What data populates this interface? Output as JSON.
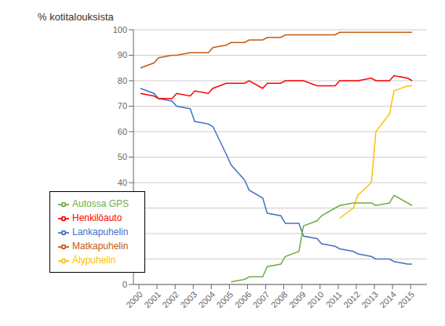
{
  "chart_data": {
    "type": "line",
    "y_label": "% kotitalouksista",
    "x": [
      2000.0833333333333,
      2000.8333333333333,
      2001.0833333333333,
      2001.8333333333333,
      2002.0833333333333,
      2002.8333333333333,
      2003.0833333333333,
      2003.8333333333333,
      2004.0833333333333,
      2004.8333333333333,
      2005.0833333333333,
      2005.8333333333333,
      2006.0833333333333,
      2006.8333333333333,
      2007.0833333333333,
      2007.8333333333333,
      2008.0833333333333,
      2008.8333333333333,
      2009.0833333333333,
      2009.8333333333333,
      2010.0833333333333,
      2010.8333333333333,
      2011.0833333333333,
      2011.8333333333333,
      2012.0833333333333,
      2012.8333333333333,
      2013.0833333333333,
      2013.8333333333333,
      2014.0833333333333,
      2014.8333333333333,
      2015.0833333333333
    ],
    "series": [
      {
        "name": "Lankapuhelin",
        "color": "#4472C4",
        "values": [
          77,
          75,
          73,
          72,
          70,
          69,
          64,
          63,
          62,
          51,
          47,
          41,
          37,
          34,
          28,
          27,
          24,
          24,
          19,
          18,
          16,
          15,
          14,
          13,
          12,
          11,
          10,
          10,
          9,
          8,
          8
        ]
      },
      {
        "name": "Matkapuhelin",
        "color": "#C55A11",
        "values": [
          85,
          87,
          89,
          90,
          90,
          91,
          91,
          91,
          93,
          94,
          95,
          95,
          96,
          96,
          97,
          97,
          98,
          98,
          98,
          98,
          98,
          98,
          99,
          99,
          99,
          99,
          99,
          99,
          99,
          99,
          99
        ]
      },
      {
        "name": "Älypuhelin",
        "color": "#FFC000",
        "values": [
          null,
          null,
          null,
          null,
          null,
          null,
          null,
          null,
          null,
          null,
          null,
          null,
          null,
          null,
          null,
          null,
          null,
          null,
          null,
          null,
          null,
          null,
          26,
          30,
          35,
          40,
          60,
          67,
          76,
          78,
          78
        ]
      },
      {
        "name": "Henkilöauto",
        "color": "#FF0000",
        "values": [
          75,
          74,
          73,
          73,
          75,
          74,
          76,
          75,
          77,
          79,
          79,
          79,
          80,
          77,
          79,
          79,
          80,
          80,
          80,
          78,
          78,
          78,
          80,
          80,
          80,
          81,
          80,
          80,
          82,
          81,
          80
        ]
      },
      {
        "name": "Autossa GPS",
        "color": "#70AD47",
        "values": [
          null,
          null,
          null,
          null,
          null,
          null,
          null,
          null,
          null,
          null,
          1,
          2,
          3,
          3,
          7,
          8,
          11,
          13,
          23,
          25,
          27,
          30,
          31,
          32,
          32,
          32,
          31,
          32,
          35,
          32,
          31
        ]
      }
    ],
    "xlim": [
      1999.7,
      2015.9
    ],
    "xticks": [
      2000,
      2001,
      2002,
      2003,
      2004,
      2005,
      2006,
      2007,
      2008,
      2009,
      2010,
      2011,
      2012,
      2013,
      2014,
      2015
    ],
    "ylim": [
      0,
      100
    ],
    "yticks": [
      0,
      10,
      20,
      30,
      40,
      50,
      60,
      70,
      80,
      90,
      100
    ],
    "grid": true,
    "legend": "lower left"
  }
}
